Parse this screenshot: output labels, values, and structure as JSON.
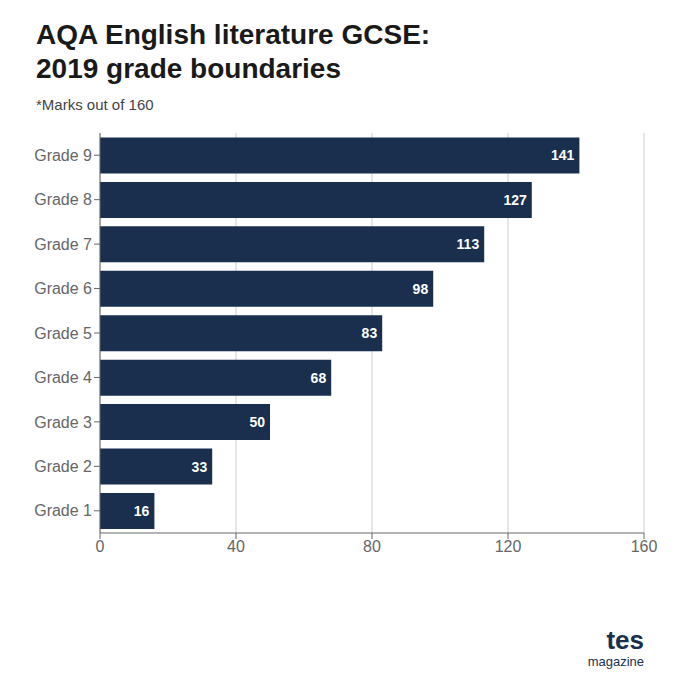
{
  "chart_data": {
    "type": "bar",
    "orientation": "horizontal",
    "title": "AQA English literature GCSE:\n2019 grade boundaries",
    "subtitle": "*Marks out of 160",
    "categories": [
      "Grade 9",
      "Grade 8",
      "Grade 7",
      "Grade 6",
      "Grade 5",
      "Grade 4",
      "Grade 3",
      "Grade 2",
      "Grade 1"
    ],
    "values": [
      141,
      127,
      113,
      98,
      83,
      68,
      50,
      33,
      16
    ],
    "color": "#1a2f4e",
    "xlim": [
      0,
      160
    ],
    "xticks": [
      0,
      40,
      80,
      120,
      160
    ],
    "grid": true,
    "data_labels": true,
    "annotations": [
      "tes",
      "magazine"
    ]
  }
}
